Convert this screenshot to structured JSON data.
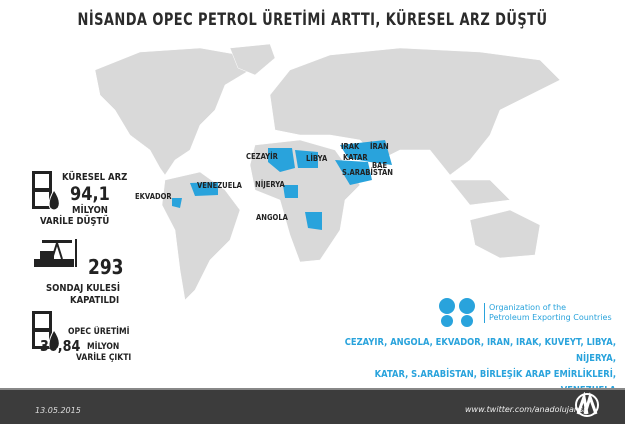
{
  "title": "NİSANDA OPEC PETROL ÜRETİMİ ARTTI, KÜRESEL ARZ DÜŞTÜ",
  "map": {
    "highlight_color": "#29a3dc",
    "land_color": "#d9d9d9",
    "labels": {
      "cezayir": "CEZAYİR",
      "libya": "LİBYA",
      "irak": "IRAK",
      "iran": "İRAN",
      "katar": "KATAR",
      "bae": "BAE",
      "sarabistan": "S.ARABİSTAN",
      "nijerya": "NİJERYA",
      "angola": "ANGOLA",
      "venezuela": "VENEZUELA",
      "ekvador": "EKVADOR"
    }
  },
  "stats": {
    "supply": {
      "label": "KÜRESEL ARZ",
      "value": "94,1",
      "unit": "MİLYON",
      "text": "VARİLE DÜŞTÜ",
      "icon": "oil-barrel-icon"
    },
    "rigs": {
      "value": "293",
      "line1": "SONDAJ KULESİ",
      "line2": "KAPATILDI",
      "icon": "oil-pump-icon"
    },
    "opec": {
      "label": "OPEC ÜRETİMİ",
      "value": "30,84",
      "unit": "MİLYON",
      "text": "VARİLE ÇIKTI",
      "icon": "oil-barrel-icon"
    }
  },
  "opec": {
    "name_line1": "Organization of the",
    "name_line2": "Petroleum Exporting Countries",
    "members_line1": "CEZAYİR, ANGOLA, EKVADOR, İRAN, IRAK, KUVEYT, LİBYA, NİJERYA,",
    "members_line2": "KATAR, S.ARABİSTAN, BİRLEŞİK ARAP EMİRLİKLERİ, VENEZUELA"
  },
  "footer": {
    "date": "13.05.2015",
    "twitter": "www.twitter.com/anadolujansi"
  }
}
